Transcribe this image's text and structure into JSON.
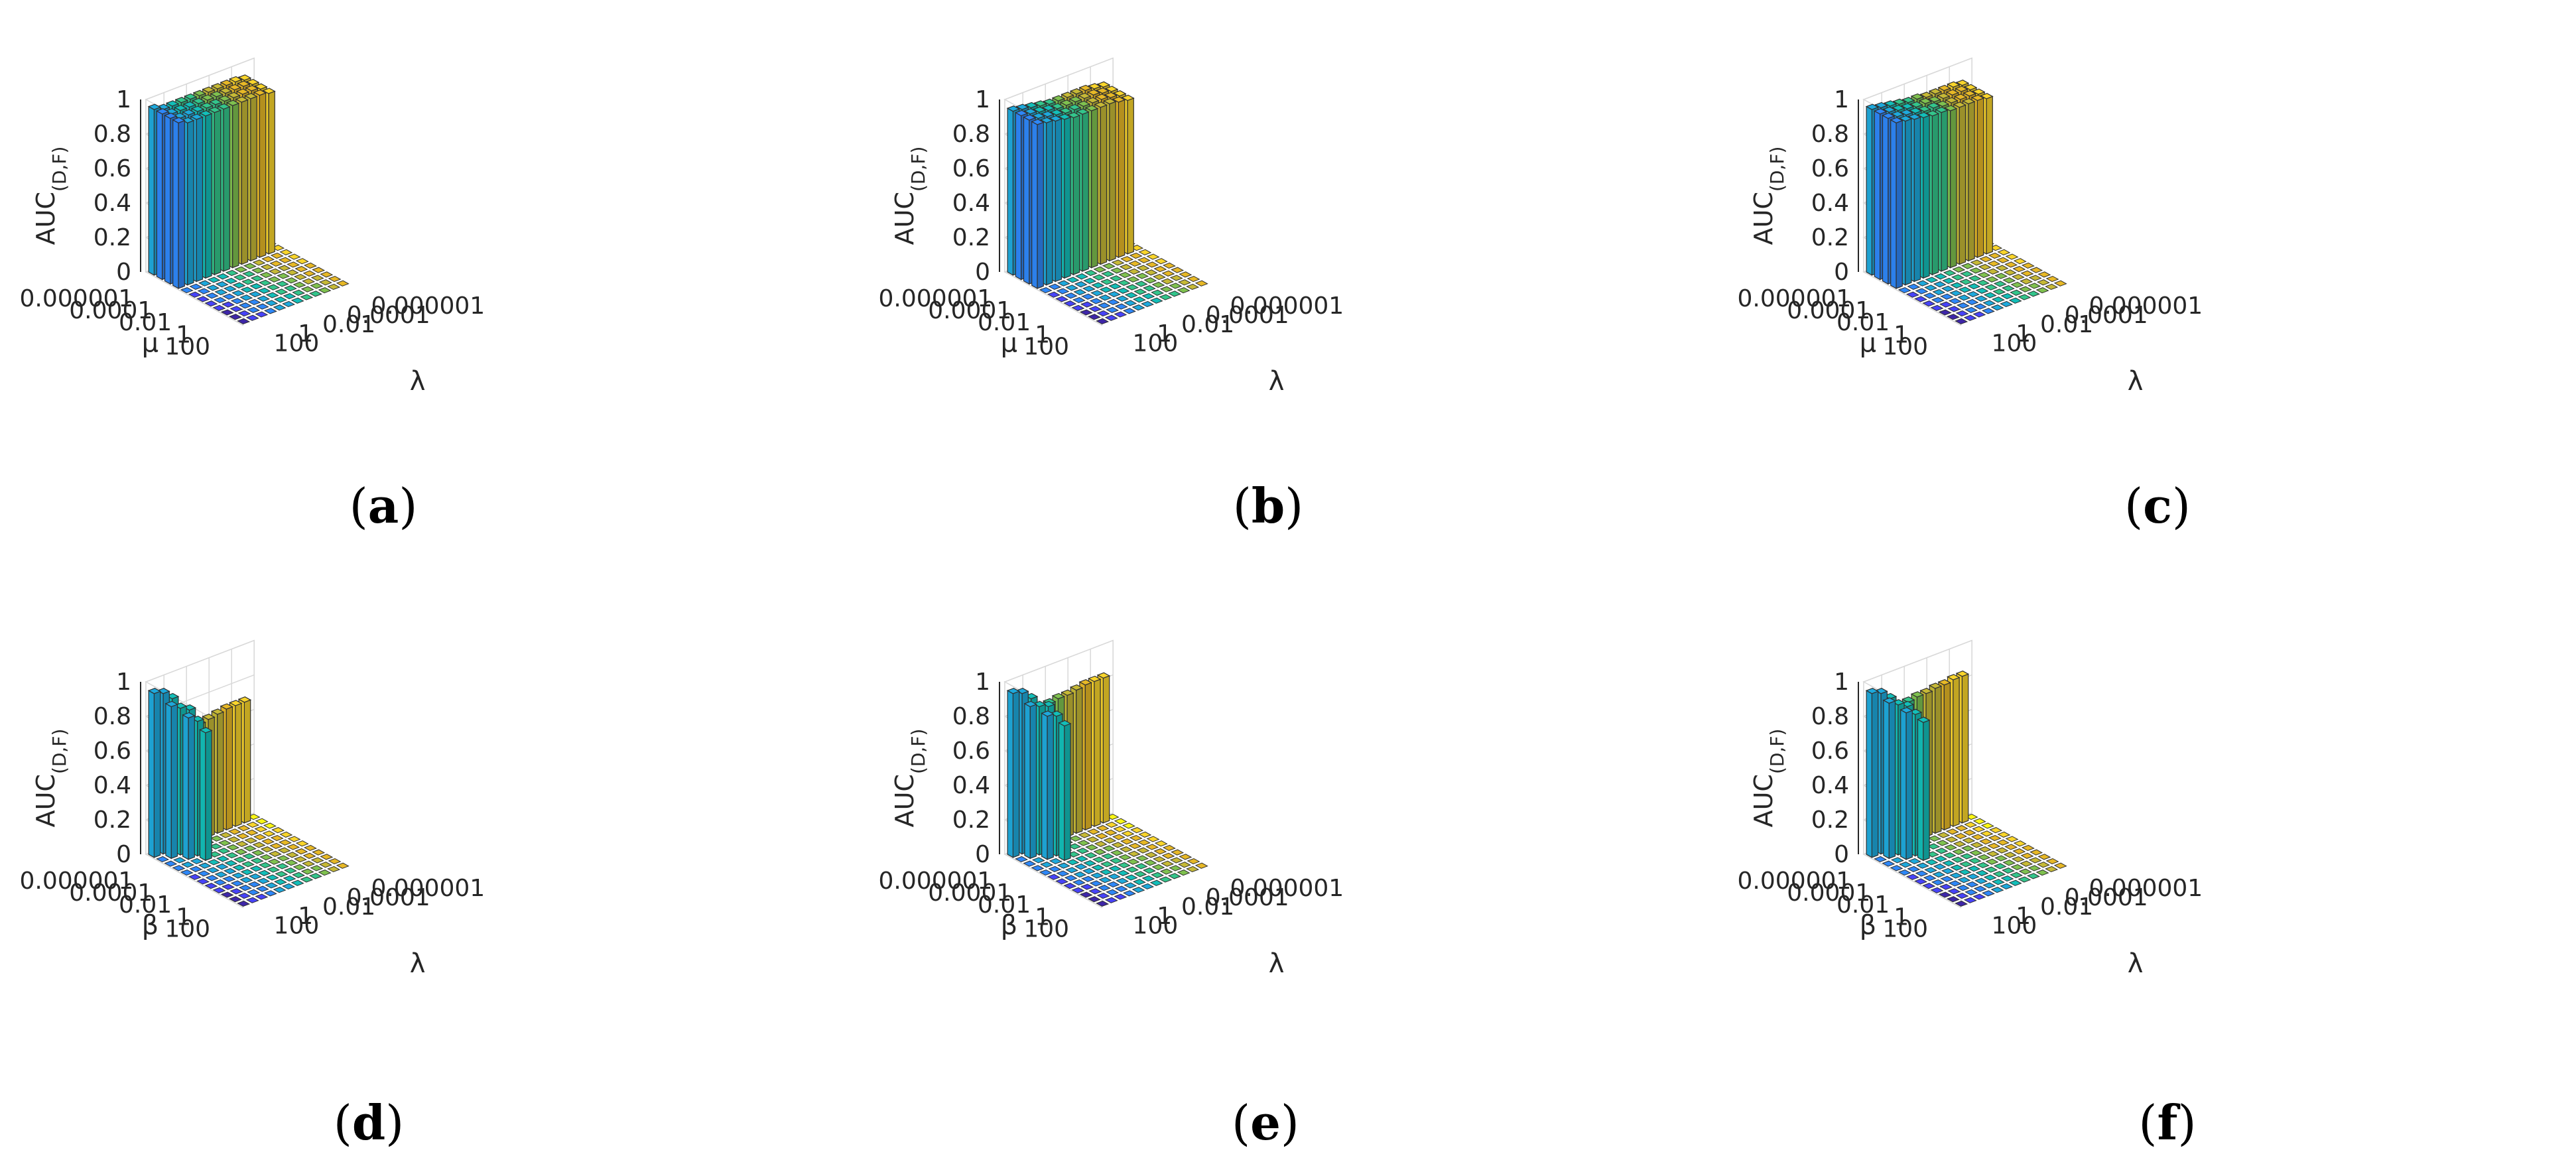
{
  "chart_data": [
    {
      "type": "bar3d",
      "caption_open": "(",
      "caption_letter": "a",
      "caption_close": ")",
      "ylabel": "μ",
      "xlabel": "λ",
      "zlabel_main": "AUC",
      "zlabel_sub": "(D,F)",
      "ticks": [
        "0.000001",
        "0.0001",
        "0.01",
        "1",
        "100"
      ],
      "zticks": [
        "0",
        "0.2",
        "0.4",
        "0.6",
        "0.8",
        "1"
      ],
      "zlim": [
        0,
        1
      ],
      "values": [
        [
          0.96,
          0.94,
          0.94,
          0.94,
          0.94,
          0.94,
          0.94,
          0.94,
          0.94,
          0.94,
          0.93,
          0.0
        ],
        [
          0.96,
          0.94,
          0.94,
          0.94,
          0.94,
          0.94,
          0.94,
          0.94,
          0.94,
          0.94,
          0.93,
          0.0
        ],
        [
          0.96,
          0.94,
          0.94,
          0.94,
          0.94,
          0.94,
          0.94,
          0.94,
          0.94,
          0.94,
          0.93,
          0.0
        ],
        [
          0.96,
          0.94,
          0.94,
          0.94,
          0.94,
          0.94,
          0.94,
          0.94,
          0.94,
          0.94,
          0.93,
          0.0
        ],
        [
          0.0,
          0.0,
          0.0,
          0.0,
          0.0,
          0.0,
          0.0,
          0.0,
          0.0,
          0.0,
          0.0,
          0.0
        ],
        [
          0.0,
          0.0,
          0.0,
          0.0,
          0.0,
          0.0,
          0.0,
          0.0,
          0.0,
          0.0,
          0.0,
          0.0
        ],
        [
          0.0,
          0.0,
          0.0,
          0.0,
          0.0,
          0.0,
          0.0,
          0.0,
          0.0,
          0.0,
          0.0,
          0.0
        ],
        [
          0.0,
          0.0,
          0.0,
          0.0,
          0.0,
          0.0,
          0.0,
          0.0,
          0.0,
          0.0,
          0.0,
          0.0
        ],
        [
          0.0,
          0.0,
          0.0,
          0.0,
          0.0,
          0.0,
          0.0,
          0.0,
          0.0,
          0.0,
          0.0,
          0.0
        ],
        [
          0.0,
          0.0,
          0.0,
          0.0,
          0.0,
          0.0,
          0.0,
          0.0,
          0.0,
          0.0,
          0.0,
          0.0
        ],
        [
          0.0,
          0.0,
          0.0,
          0.0,
          0.0,
          0.0,
          0.0,
          0.0,
          0.0,
          0.0,
          0.0,
          0.0
        ],
        [
          0.0,
          0.0,
          0.0,
          0.0,
          0.0,
          0.0,
          0.0,
          0.0,
          0.0,
          0.0,
          0.0,
          0.0
        ]
      ]
    },
    {
      "type": "bar3d",
      "caption_open": "(",
      "caption_letter": "b",
      "caption_close": ")",
      "ylabel": "μ",
      "xlabel": "λ",
      "zlabel_main": "AUC",
      "zlabel_sub": "(D,F)",
      "ticks": [
        "0.000001",
        "0.0001",
        "0.01",
        "1",
        "100"
      ],
      "zticks": [
        "0",
        "0.2",
        "0.4",
        "0.6",
        "0.8",
        "1"
      ],
      "zlim": [
        0,
        1
      ],
      "values": [
        [
          0.95,
          0.94,
          0.93,
          0.92,
          0.91,
          0.91,
          0.91,
          0.91,
          0.91,
          0.9,
          0.89,
          0.0
        ],
        [
          0.95,
          0.94,
          0.93,
          0.92,
          0.91,
          0.91,
          0.91,
          0.91,
          0.91,
          0.9,
          0.89,
          0.0
        ],
        [
          0.95,
          0.94,
          0.93,
          0.92,
          0.91,
          0.91,
          0.91,
          0.91,
          0.91,
          0.9,
          0.89,
          0.0
        ],
        [
          0.95,
          0.94,
          0.93,
          0.92,
          0.91,
          0.91,
          0.91,
          0.91,
          0.91,
          0.9,
          0.89,
          0.0
        ],
        [
          0.0,
          0.0,
          0.0,
          0.0,
          0.0,
          0.0,
          0.0,
          0.0,
          0.0,
          0.0,
          0.0,
          0.0
        ],
        [
          0.0,
          0.0,
          0.0,
          0.0,
          0.0,
          0.0,
          0.0,
          0.0,
          0.0,
          0.0,
          0.0,
          0.0
        ],
        [
          0.0,
          0.0,
          0.0,
          0.0,
          0.0,
          0.0,
          0.0,
          0.0,
          0.0,
          0.0,
          0.0,
          0.0
        ],
        [
          0.0,
          0.0,
          0.0,
          0.0,
          0.0,
          0.0,
          0.0,
          0.0,
          0.0,
          0.0,
          0.0,
          0.0
        ],
        [
          0.0,
          0.0,
          0.0,
          0.0,
          0.0,
          0.0,
          0.0,
          0.0,
          0.0,
          0.0,
          0.0,
          0.0
        ],
        [
          0.0,
          0.0,
          0.0,
          0.0,
          0.0,
          0.0,
          0.0,
          0.0,
          0.0,
          0.0,
          0.0,
          0.0
        ],
        [
          0.0,
          0.0,
          0.0,
          0.0,
          0.0,
          0.0,
          0.0,
          0.0,
          0.0,
          0.0,
          0.0,
          0.0
        ],
        [
          0.0,
          0.0,
          0.0,
          0.0,
          0.0,
          0.0,
          0.0,
          0.0,
          0.0,
          0.0,
          0.0,
          0.0
        ]
      ]
    },
    {
      "type": "bar3d",
      "caption_open": "(",
      "caption_letter": "c",
      "caption_close": ")",
      "ylabel": "μ",
      "xlabel": "λ",
      "zlabel_main": "AUC",
      "zlabel_sub": "(D,F)",
      "ticks": [
        "0.000001",
        "0.0001",
        "0.01",
        "1",
        "100"
      ],
      "zticks": [
        "0",
        "0.2",
        "0.4",
        "0.6",
        "0.8",
        "1"
      ],
      "zlim": [
        0,
        1
      ],
      "values": [
        [
          0.96,
          0.95,
          0.94,
          0.93,
          0.92,
          0.92,
          0.91,
          0.91,
          0.91,
          0.91,
          0.9,
          0.0
        ],
        [
          0.96,
          0.95,
          0.94,
          0.93,
          0.92,
          0.92,
          0.91,
          0.91,
          0.91,
          0.91,
          0.9,
          0.0
        ],
        [
          0.96,
          0.95,
          0.94,
          0.93,
          0.92,
          0.92,
          0.91,
          0.91,
          0.91,
          0.91,
          0.9,
          0.0
        ],
        [
          0.96,
          0.95,
          0.94,
          0.93,
          0.92,
          0.92,
          0.91,
          0.91,
          0.91,
          0.91,
          0.9,
          0.0
        ],
        [
          0.0,
          0.0,
          0.0,
          0.0,
          0.0,
          0.0,
          0.0,
          0.0,
          0.0,
          0.0,
          0.0,
          0.0
        ],
        [
          0.0,
          0.0,
          0.0,
          0.0,
          0.0,
          0.0,
          0.0,
          0.0,
          0.0,
          0.0,
          0.0,
          0.0
        ],
        [
          0.0,
          0.0,
          0.0,
          0.0,
          0.0,
          0.0,
          0.0,
          0.0,
          0.0,
          0.0,
          0.0,
          0.0
        ],
        [
          0.0,
          0.0,
          0.0,
          0.0,
          0.0,
          0.0,
          0.0,
          0.0,
          0.0,
          0.0,
          0.0,
          0.0
        ],
        [
          0.0,
          0.0,
          0.0,
          0.0,
          0.0,
          0.0,
          0.0,
          0.0,
          0.0,
          0.0,
          0.0,
          0.0
        ],
        [
          0.0,
          0.0,
          0.0,
          0.0,
          0.0,
          0.0,
          0.0,
          0.0,
          0.0,
          0.0,
          0.0,
          0.0
        ],
        [
          0.0,
          0.0,
          0.0,
          0.0,
          0.0,
          0.0,
          0.0,
          0.0,
          0.0,
          0.0,
          0.0,
          0.0
        ],
        [
          0.0,
          0.0,
          0.0,
          0.0,
          0.0,
          0.0,
          0.0,
          0.0,
          0.0,
          0.0,
          0.0,
          0.0
        ]
      ]
    },
    {
      "type": "bar3d",
      "caption_open": "(",
      "caption_letter": "d",
      "caption_close": ")",
      "ylabel": "β",
      "xlabel": "λ",
      "zlabel_main": "AUC",
      "zlabel_sub": "(D,F)",
      "ticks": [
        "0.000001",
        "0.0001",
        "0.01",
        "1",
        "100"
      ],
      "zticks": [
        "0",
        "0.2",
        "0.4",
        "0.6",
        "0.8",
        "1"
      ],
      "zlim": [
        0,
        1
      ],
      "values": [
        [
          0.95,
          0.93,
          0.88,
          0.65,
          0.66,
          0.67,
          0.68,
          0.69,
          0.7,
          0.7,
          0.7,
          0.0
        ],
        [
          0.0,
          0.88,
          0.85,
          0.82,
          0.0,
          0.0,
          0.0,
          0.0,
          0.0,
          0.0,
          0.0,
          0.0
        ],
        [
          0.0,
          0.0,
          0.82,
          0.78,
          0.0,
          0.0,
          0.0,
          0.0,
          0.0,
          0.0,
          0.0,
          0.0
        ],
        [
          0.0,
          0.0,
          0.0,
          0.74,
          0.0,
          0.0,
          0.0,
          0.0,
          0.0,
          0.0,
          0.0,
          0.0
        ],
        [
          0.0,
          0.0,
          0.0,
          0.0,
          0.0,
          0.0,
          0.0,
          0.0,
          0.0,
          0.0,
          0.0,
          0.0
        ],
        [
          0.0,
          0.0,
          0.0,
          0.0,
          0.0,
          0.0,
          0.0,
          0.0,
          0.0,
          0.0,
          0.0,
          0.0
        ],
        [
          0.0,
          0.0,
          0.0,
          0.0,
          0.0,
          0.0,
          0.0,
          0.0,
          0.0,
          0.0,
          0.0,
          0.0
        ],
        [
          0.0,
          0.0,
          0.0,
          0.0,
          0.0,
          0.0,
          0.0,
          0.0,
          0.0,
          0.0,
          0.0,
          0.0
        ],
        [
          0.0,
          0.0,
          0.0,
          0.0,
          0.0,
          0.0,
          0.0,
          0.0,
          0.0,
          0.0,
          0.0,
          0.0
        ],
        [
          0.0,
          0.0,
          0.0,
          0.0,
          0.0,
          0.0,
          0.0,
          0.0,
          0.0,
          0.0,
          0.0,
          0.0
        ],
        [
          0.0,
          0.0,
          0.0,
          0.0,
          0.0,
          0.0,
          0.0,
          0.0,
          0.0,
          0.0,
          0.0,
          0.0
        ],
        [
          0.0,
          0.0,
          0.0,
          0.0,
          0.0,
          0.0,
          0.0,
          0.0,
          0.0,
          0.0,
          0.0,
          0.0
        ]
      ]
    },
    {
      "type": "bar3d",
      "caption_open": "(",
      "caption_letter": "e",
      "caption_close": ")",
      "ylabel": "β",
      "xlabel": "λ",
      "zlabel_main": "AUC",
      "zlabel_sub": "(D,F)",
      "ticks": [
        "0.000001",
        "0.0001",
        "0.01",
        "1",
        "100"
      ],
      "zticks": [
        "0",
        "0.2",
        "0.4",
        "0.6",
        "0.8",
        "1"
      ],
      "zlim": [
        0,
        1
      ],
      "values": [
        [
          0.95,
          0.93,
          0.88,
          0.8,
          0.81,
          0.82,
          0.82,
          0.83,
          0.84,
          0.84,
          0.84,
          0.0
        ],
        [
          0.0,
          0.88,
          0.86,
          0.84,
          0.0,
          0.0,
          0.0,
          0.0,
          0.0,
          0.0,
          0.0,
          0.0
        ],
        [
          0.0,
          0.0,
          0.83,
          0.81,
          0.0,
          0.0,
          0.0,
          0.0,
          0.0,
          0.0,
          0.0,
          0.0
        ],
        [
          0.0,
          0.0,
          0.0,
          0.78,
          0.0,
          0.0,
          0.0,
          0.0,
          0.0,
          0.0,
          0.0,
          0.0
        ],
        [
          0.0,
          0.0,
          0.0,
          0.0,
          0.0,
          0.0,
          0.0,
          0.0,
          0.0,
          0.0,
          0.0,
          0.0
        ],
        [
          0.0,
          0.0,
          0.0,
          0.0,
          0.0,
          0.0,
          0.0,
          0.0,
          0.0,
          0.0,
          0.0,
          0.0
        ],
        [
          0.0,
          0.0,
          0.0,
          0.0,
          0.0,
          0.0,
          0.0,
          0.0,
          0.0,
          0.0,
          0.0,
          0.0
        ],
        [
          0.0,
          0.0,
          0.0,
          0.0,
          0.0,
          0.0,
          0.0,
          0.0,
          0.0,
          0.0,
          0.0,
          0.0
        ],
        [
          0.0,
          0.0,
          0.0,
          0.0,
          0.0,
          0.0,
          0.0,
          0.0,
          0.0,
          0.0,
          0.0,
          0.0
        ],
        [
          0.0,
          0.0,
          0.0,
          0.0,
          0.0,
          0.0,
          0.0,
          0.0,
          0.0,
          0.0,
          0.0,
          0.0
        ],
        [
          0.0,
          0.0,
          0.0,
          0.0,
          0.0,
          0.0,
          0.0,
          0.0,
          0.0,
          0.0,
          0.0,
          0.0
        ],
        [
          0.0,
          0.0,
          0.0,
          0.0,
          0.0,
          0.0,
          0.0,
          0.0,
          0.0,
          0.0,
          0.0,
          0.0
        ]
      ]
    },
    {
      "type": "bar3d",
      "caption_open": "(",
      "caption_letter": "f",
      "caption_close": ")",
      "ylabel": "β",
      "xlabel": "λ",
      "zlabel_main": "AUC",
      "zlabel_sub": "(D,F)",
      "ticks": [
        "0.000001",
        "0.0001",
        "0.01",
        "1",
        "100"
      ],
      "zticks": [
        "0",
        "0.2",
        "0.4",
        "0.6",
        "0.8",
        "1"
      ],
      "zlim": [
        0,
        1
      ],
      "values": [
        [
          0.95,
          0.93,
          0.88,
          0.82,
          0.82,
          0.83,
          0.83,
          0.84,
          0.84,
          0.85,
          0.85,
          0.0
        ],
        [
          0.0,
          0.9,
          0.87,
          0.84,
          0.0,
          0.0,
          0.0,
          0.0,
          0.0,
          0.0,
          0.0,
          0.0
        ],
        [
          0.0,
          0.0,
          0.85,
          0.82,
          0.0,
          0.0,
          0.0,
          0.0,
          0.0,
          0.0,
          0.0,
          0.0
        ],
        [
          0.0,
          0.0,
          0.0,
          0.8,
          0.0,
          0.0,
          0.0,
          0.0,
          0.0,
          0.0,
          0.0,
          0.0
        ],
        [
          0.0,
          0.0,
          0.0,
          0.0,
          0.0,
          0.0,
          0.0,
          0.0,
          0.0,
          0.0,
          0.0,
          0.0
        ],
        [
          0.0,
          0.0,
          0.0,
          0.0,
          0.0,
          0.0,
          0.0,
          0.0,
          0.0,
          0.0,
          0.0,
          0.0
        ],
        [
          0.0,
          0.0,
          0.0,
          0.0,
          0.0,
          0.0,
          0.0,
          0.0,
          0.0,
          0.0,
          0.0,
          0.0
        ],
        [
          0.0,
          0.0,
          0.0,
          0.0,
          0.0,
          0.0,
          0.0,
          0.0,
          0.0,
          0.0,
          0.0,
          0.0
        ],
        [
          0.0,
          0.0,
          0.0,
          0.0,
          0.0,
          0.0,
          0.0,
          0.0,
          0.0,
          0.0,
          0.0,
          0.0
        ],
        [
          0.0,
          0.0,
          0.0,
          0.0,
          0.0,
          0.0,
          0.0,
          0.0,
          0.0,
          0.0,
          0.0,
          0.0
        ],
        [
          0.0,
          0.0,
          0.0,
          0.0,
          0.0,
          0.0,
          0.0,
          0.0,
          0.0,
          0.0,
          0.0,
          0.0
        ],
        [
          0.0,
          0.0,
          0.0,
          0.0,
          0.0,
          0.0,
          0.0,
          0.0,
          0.0,
          0.0,
          0.0,
          0.0
        ]
      ]
    }
  ],
  "colormap": [
    "#3e26a8",
    "#4743f8",
    "#2e87f7",
    "#1ea9dc",
    "#13beb8",
    "#33c58b",
    "#7fc14f",
    "#c6b936",
    "#e7b826",
    "#f9d52b",
    "#f9f615"
  ],
  "edge_color": "#303030",
  "grid_color": "#d9d9d9"
}
